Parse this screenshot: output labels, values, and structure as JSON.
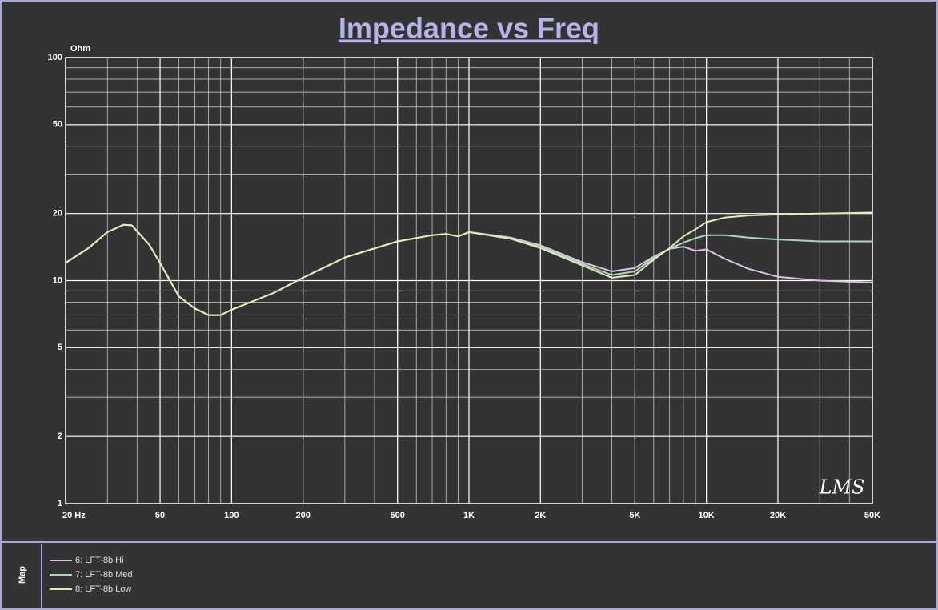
{
  "chart_data": {
    "type": "line",
    "title": "Impedance vs Freq",
    "y_label": "Ohm",
    "legend_title": "Map",
    "watermark": "LMS",
    "x": [
      20,
      25,
      30,
      35,
      38,
      45,
      50,
      60,
      70,
      80,
      90,
      100,
      120,
      150,
      200,
      300,
      500,
      700,
      800,
      900,
      1000,
      1500,
      2000,
      3000,
      4000,
      5000,
      6000,
      7000,
      8000,
      9000,
      10000,
      12000,
      15000,
      20000,
      30000,
      50000
    ],
    "series": [
      {
        "name": "6: LFT-8b Hi",
        "color": "#dcc4e4",
        "values": [
          12,
          14,
          16.5,
          17.8,
          17.7,
          14.5,
          12,
          8.5,
          7.5,
          7.0,
          7.0,
          7.4,
          8.0,
          8.8,
          10.3,
          12.7,
          15,
          16,
          16.2,
          15.8,
          16.5,
          15.6,
          14.4,
          12.1,
          11,
          11.4,
          12.8,
          13.9,
          14.2,
          13.6,
          13.8,
          12.5,
          11.3,
          10.4,
          10,
          9.8
        ]
      },
      {
        "name": "7: LFT-8b Med",
        "color": "#a8d8c0",
        "values": [
          12,
          14,
          16.5,
          17.8,
          17.7,
          14.5,
          12,
          8.5,
          7.5,
          7.0,
          7.0,
          7.4,
          8.0,
          8.8,
          10.3,
          12.7,
          15,
          16,
          16.2,
          15.8,
          16.5,
          15.5,
          14.2,
          11.9,
          10.6,
          11,
          12.6,
          13.9,
          14.8,
          15.5,
          16,
          16,
          15.6,
          15.3,
          15,
          15
        ]
      },
      {
        "name": "8: LFT-8b Low",
        "color": "#e4ecb4",
        "values": [
          12,
          14,
          16.5,
          17.8,
          17.7,
          14.5,
          12,
          8.5,
          7.5,
          7.0,
          7.0,
          7.4,
          8.0,
          8.8,
          10.3,
          12.7,
          15,
          16,
          16.2,
          15.8,
          16.5,
          15.4,
          14.0,
          11.7,
          10.3,
          10.6,
          12.4,
          14.0,
          15.8,
          17,
          18.3,
          19.2,
          19.6,
          19.8,
          20,
          20.2
        ]
      }
    ],
    "log_x": true,
    "log_y": true,
    "grid": true,
    "xlim": [
      20,
      50000
    ],
    "ylim": [
      1,
      100
    ],
    "xticks": [
      {
        "value": 20,
        "label": "20  Hz"
      },
      50,
      100,
      200,
      500,
      {
        "value": 1000,
        "label": "1K"
      },
      {
        "value": 2000,
        "label": "2K"
      },
      {
        "value": 5000,
        "label": "5K"
      },
      {
        "value": 10000,
        "label": "10K"
      },
      {
        "value": 20000,
        "label": "20K"
      },
      {
        "value": 50000,
        "label": "50K"
      }
    ],
    "yticks": [
      1,
      2,
      5,
      10,
      20,
      50,
      100
    ]
  }
}
